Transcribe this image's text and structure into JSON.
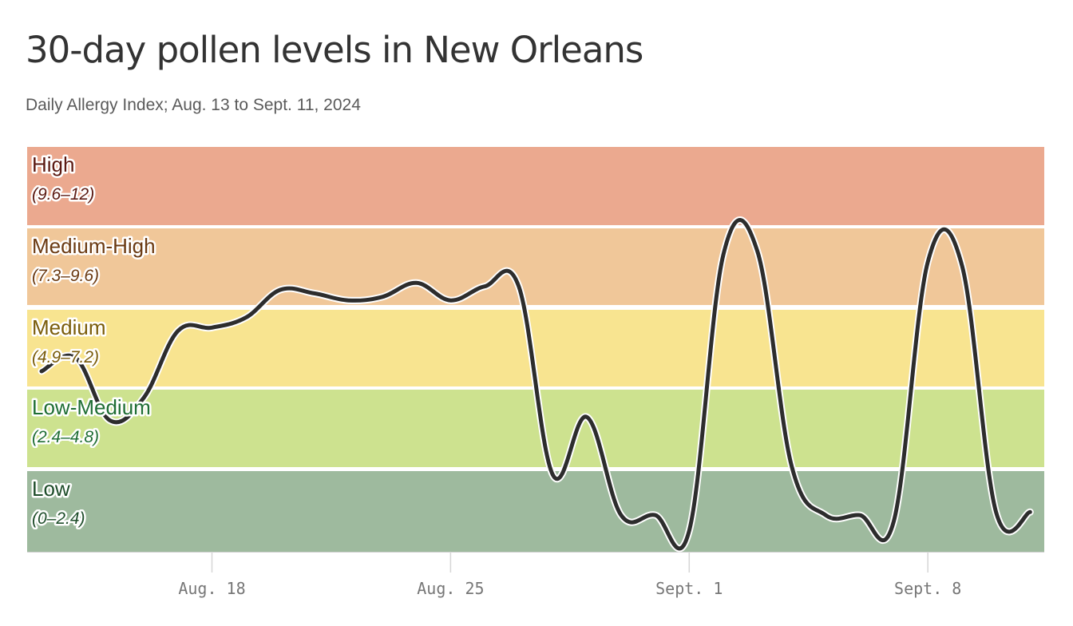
{
  "title": "30-day pollen levels in New Orleans",
  "subtitle": "Daily Allergy Index; Aug. 13 to Sept. 11, 2024",
  "chart_data": {
    "type": "line",
    "title": "30-day pollen levels in New Orleans",
    "subtitle": "Daily Allergy Index; Aug. 13 to Sept. 11, 2024",
    "xlabel": "",
    "ylabel": "",
    "ylim": [
      0,
      12
    ],
    "x": [
      "2024-08-13",
      "2024-08-14",
      "2024-08-15",
      "2024-08-16",
      "2024-08-17",
      "2024-08-18",
      "2024-08-19",
      "2024-08-20",
      "2024-08-21",
      "2024-08-22",
      "2024-08-23",
      "2024-08-24",
      "2024-08-25",
      "2024-08-26",
      "2024-08-27",
      "2024-08-28",
      "2024-08-29",
      "2024-08-30",
      "2024-08-31",
      "2024-09-01",
      "2024-09-02",
      "2024-09-03",
      "2024-09-04",
      "2024-09-05",
      "2024-09-06",
      "2024-09-07",
      "2024-09-08",
      "2024-09-09",
      "2024-09-10",
      "2024-09-11"
    ],
    "series": [
      {
        "values": [
          5.4,
          5.8,
          3.9,
          4.6,
          6.6,
          6.7,
          7.0,
          7.8,
          7.7,
          7.5,
          7.6,
          8.0,
          7.5,
          7.9,
          7.9,
          2.2,
          4.0,
          0.9,
          0.9,
          0.4,
          8.8,
          8.9,
          2.5,
          0.9,
          0.9,
          0.7,
          8.6,
          8.5,
          1.0,
          1.0
        ],
        "color": "#2d2d2d"
      }
    ],
    "bands": [
      {
        "name": "High",
        "range": "(9.6–12)",
        "min": 9.6,
        "max": 12,
        "color": "#eba98f",
        "text_color": "#5c1a12"
      },
      {
        "name": "Medium-High",
        "range": "(7.3–9.6)",
        "min": 7.3,
        "max": 9.6,
        "color": "#f0c799",
        "text_color": "#6b3a12"
      },
      {
        "name": "Medium",
        "range": "(4.9–7.2)",
        "min": 4.9,
        "max": 7.3,
        "color": "#f8e490",
        "text_color": "#7a5c0a"
      },
      {
        "name": "Low-Medium",
        "range": "(2.4–4.8)",
        "min": 2.4,
        "max": 4.9,
        "color": "#cde28f",
        "text_color": "#1f6e34"
      },
      {
        "name": "Low",
        "range": "(0–2.4)",
        "min": 0,
        "max": 2.4,
        "color": "#9eba9e",
        "text_color": "#1e4d2a"
      }
    ],
    "x_ticks": [
      {
        "date": "2024-08-18",
        "label": "Aug. 18"
      },
      {
        "date": "2024-08-25",
        "label": "Aug. 25"
      },
      {
        "date": "2024-09-01",
        "label": "Sept. 1"
      },
      {
        "date": "2024-09-08",
        "label": "Sept. 8"
      }
    ],
    "grid": false,
    "legend": "none"
  }
}
